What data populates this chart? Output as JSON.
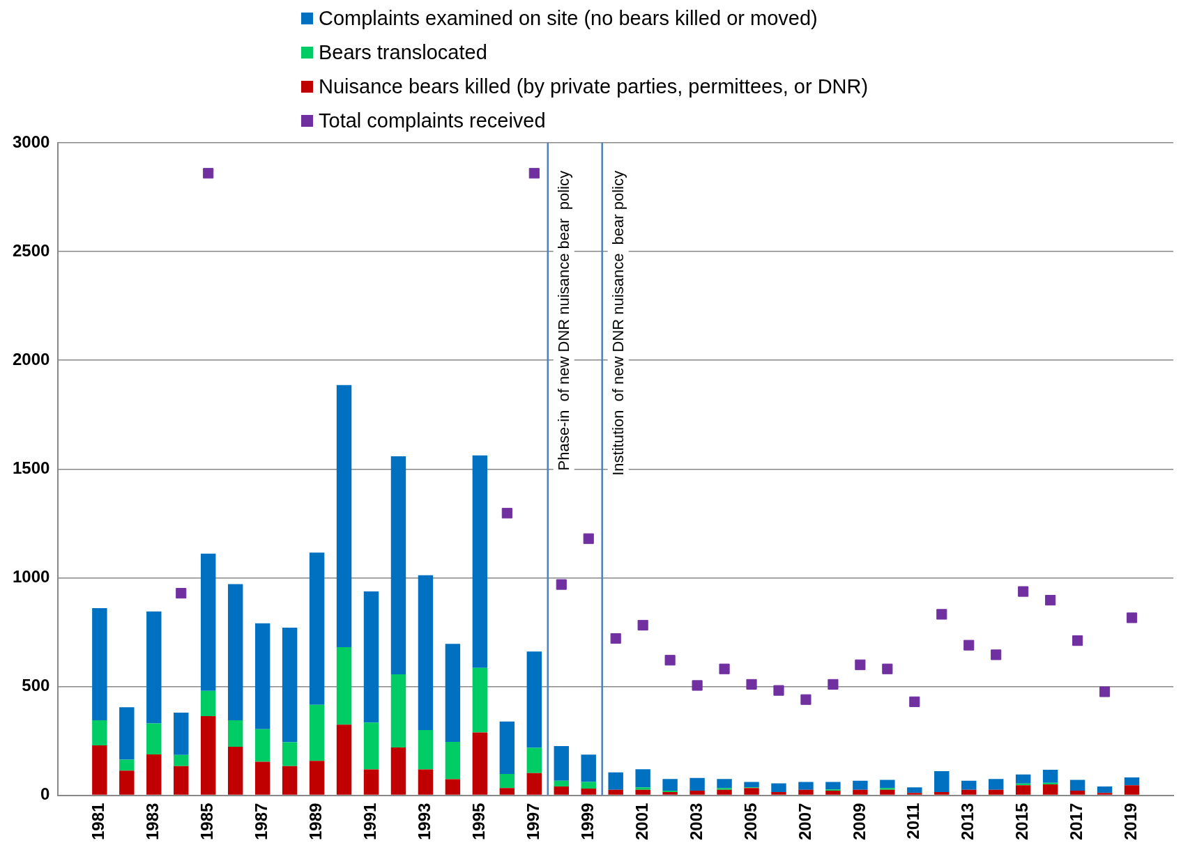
{
  "chart_data": {
    "type": "bar",
    "stacked": true,
    "x": [
      1981,
      1982,
      1983,
      1984,
      1985,
      1986,
      1987,
      1988,
      1989,
      1990,
      1991,
      1992,
      1993,
      1994,
      1995,
      1996,
      1997,
      1998,
      1999,
      2000,
      2001,
      2002,
      2003,
      2004,
      2005,
      2006,
      2007,
      2008,
      2009,
      2010,
      2011,
      2012,
      2013,
      2014,
      2015,
      2016,
      2017,
      2018,
      2019
    ],
    "xlim": [
      1980.5,
      2019.5
    ],
    "xticks": [
      1981,
      1983,
      1985,
      1987,
      1989,
      1991,
      1993,
      1995,
      1997,
      1999,
      2001,
      2003,
      2005,
      2007,
      2009,
      2011,
      2013,
      2015,
      2017,
      2019
    ],
    "ylim": [
      0,
      3000
    ],
    "yticks": [
      0,
      500,
      1000,
      1500,
      2000,
      2500,
      3000
    ],
    "grid": "y",
    "legend": "top",
    "series": [
      {
        "name": "Nuisance bears killed (by private parties, permittees, or DNR)",
        "color": "#c00000",
        "values": [
          229,
          113,
          188,
          134,
          364,
          223,
          154,
          134,
          158,
          325,
          119,
          220,
          119,
          74,
          289,
          33,
          102,
          40,
          31,
          25,
          25,
          15,
          21,
          25,
          33,
          15,
          25,
          21,
          25,
          25,
          11,
          15,
          25,
          25,
          46,
          50,
          21,
          11,
          46
        ]
      },
      {
        "name": "Bears translocated",
        "color": "#00cc66",
        "values": [
          116,
          51,
          142,
          51,
          116,
          122,
          150,
          110,
          258,
          356,
          215,
          336,
          181,
          171,
          297,
          65,
          116,
          27,
          30,
          0,
          11,
          6,
          0,
          8,
          3,
          0,
          0,
          6,
          0,
          8,
          0,
          0,
          0,
          0,
          8,
          7,
          0,
          0,
          0
        ]
      },
      {
        "name": "Complaints examined on site (no bears killed or moved)",
        "color": "#0070c0",
        "values": [
          515,
          241,
          515,
          195,
          631,
          626,
          487,
          527,
          700,
          1205,
          603,
          1003,
          712,
          451,
          977,
          241,
          443,
          159,
          126,
          80,
          84,
          54,
          59,
          42,
          25,
          40,
          36,
          34,
          42,
          38,
          25,
          96,
          42,
          50,
          42,
          60,
          50,
          29,
          36
        ]
      },
      {
        "name": "Total complaints received",
        "type": "scatter",
        "marker": "square",
        "color": "#7030a0",
        "values": [
          null,
          null,
          null,
          929,
          2860,
          null,
          null,
          null,
          null,
          null,
          null,
          null,
          null,
          null,
          null,
          1297,
          2860,
          969,
          1180,
          721,
          782,
          621,
          505,
          581,
          510,
          482,
          440,
          510,
          600,
          581,
          430,
          832,
          690,
          646,
          937,
          897,
          711,
          476,
          816
        ]
      }
    ],
    "ref_lines": [
      {
        "axis": "x",
        "value": 1997.5,
        "label": "Phase-in  of new DNR nuisance bear  policy",
        "color": "#4f81bd"
      },
      {
        "axis": "x",
        "value": 1999.5,
        "label": "Institution  of new DNR nuisance  bear policy",
        "color": "#4f81bd"
      }
    ]
  }
}
